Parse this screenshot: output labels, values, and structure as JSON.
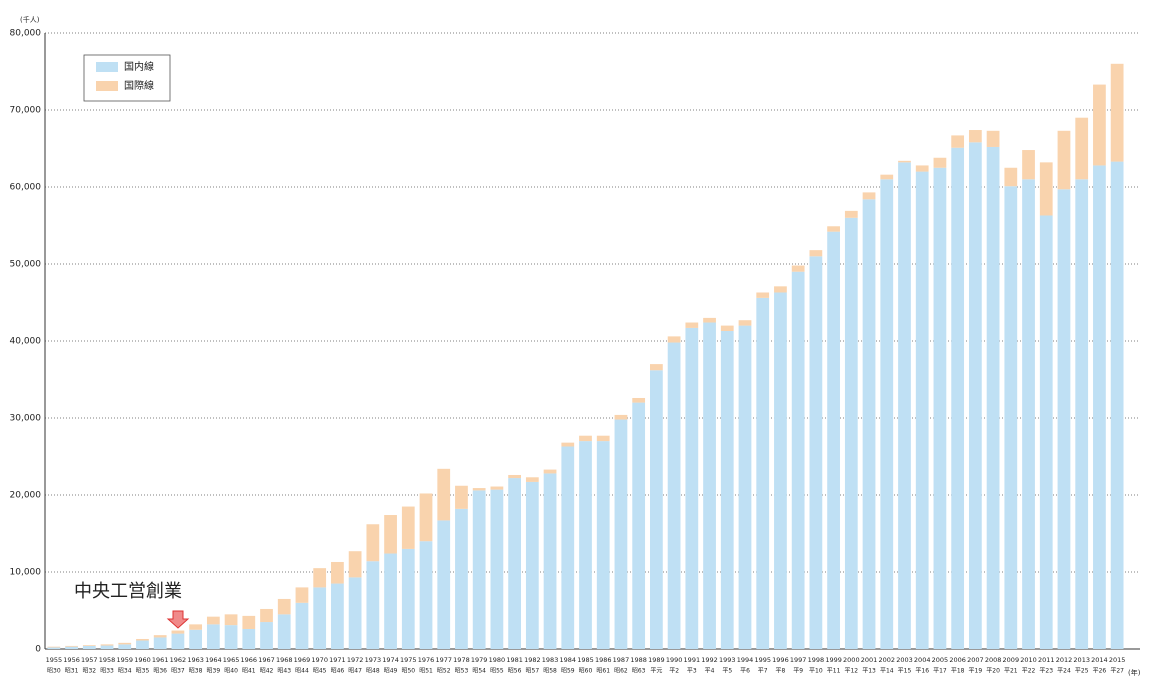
{
  "chart_data": {
    "type": "stacked_bar",
    "y_unit": "(千人)",
    "x_unit": "(年)",
    "annotation": "中央工営創業",
    "categories": [
      "1955",
      "1956",
      "1957",
      "1958",
      "1959",
      "1960",
      "1961",
      "1962",
      "1963",
      "1964",
      "1965",
      "1966",
      "1967",
      "1968",
      "1969",
      "1970",
      "1971",
      "1972",
      "1973",
      "1974",
      "1975",
      "1976",
      "1977",
      "1978",
      "1979",
      "1980",
      "1981",
      "1982",
      "1983",
      "1984",
      "1985",
      "1986",
      "1987",
      "1988",
      "1989",
      "1990",
      "1991",
      "1992",
      "1993",
      "1994",
      "1995",
      "1996",
      "1997",
      "1998",
      "1999",
      "2000",
      "2001",
      "2002",
      "2003",
      "2004",
      "2005",
      "2006",
      "2007",
      "2008",
      "2009",
      "2010",
      "2011",
      "2012",
      "2013",
      "2014",
      "2015"
    ],
    "era_labels": [
      "昭30",
      "昭31",
      "昭32",
      "昭33",
      "昭34",
      "昭35",
      "昭36",
      "昭37",
      "昭38",
      "昭39",
      "昭40",
      "昭41",
      "昭42",
      "昭43",
      "昭44",
      "昭45",
      "昭46",
      "昭47",
      "昭48",
      "昭49",
      "昭50",
      "昭51",
      "昭52",
      "昭53",
      "昭54",
      "昭55",
      "昭56",
      "昭57",
      "昭58",
      "昭59",
      "昭60",
      "昭61",
      "昭62",
      "昭63",
      "平元",
      "平2",
      "平3",
      "平4",
      "平5",
      "平6",
      "平7",
      "平8",
      "平9",
      "平10",
      "平11",
      "平12",
      "平13",
      "平14",
      "平15",
      "平16",
      "平17",
      "平18",
      "平19",
      "平20",
      "平21",
      "平22",
      "平23",
      "平24",
      "平25",
      "平26",
      "平27"
    ],
    "series": [
      {
        "name": "国内線",
        "color": "#bfe0f4",
        "values": [
          200,
          300,
          400,
          450,
          600,
          1100,
          1500,
          2000,
          2500,
          3200,
          3100,
          2600,
          3500,
          4500,
          6000,
          8000,
          8500,
          9300,
          11400,
          12400,
          13000,
          14000,
          16700,
          18200,
          20600,
          20700,
          22200,
          21700,
          22800,
          26300,
          27000,
          27000,
          29800,
          32000,
          36200,
          39800,
          41700,
          42400,
          41300,
          42000,
          45600,
          46300,
          49000,
          51000,
          54200,
          56000,
          58400,
          61000,
          63200,
          62000,
          62500,
          65100,
          65800,
          65200,
          60100,
          61000,
          56300,
          59700,
          61000,
          62800,
          63300
        ]
      },
      {
        "name": "国際線",
        "color": "#f9d3ad",
        "values": [
          100,
          100,
          100,
          150,
          200,
          200,
          300,
          400,
          700,
          1000,
          1400,
          1700,
          1700,
          2000,
          2000,
          2500,
          2800,
          3400,
          4800,
          5000,
          5500,
          6200,
          6700,
          3000,
          300,
          400,
          400,
          600,
          500,
          500,
          700,
          700,
          600,
          600,
          800,
          800,
          700,
          600,
          700,
          700,
          700,
          800,
          800,
          800,
          700,
          900,
          900,
          600,
          200,
          800,
          1300,
          1600,
          1600,
          2100,
          2400,
          3800,
          6900,
          7600,
          8000,
          10500,
          12700
        ]
      }
    ],
    "ylim": [
      0,
      80000
    ],
    "yticks": [
      0,
      {
        "value": 10000,
        "label": "10,000"
      },
      {
        "value": 20000,
        "label": "20,000"
      },
      {
        "value": 30000,
        "label": "30,000"
      },
      {
        "value": 40000,
        "label": "40,000"
      },
      {
        "value": 50000,
        "label": "50,000"
      },
      {
        "value": 60000,
        "label": "60,000"
      },
      {
        "value": 70000,
        "label": "70,000"
      },
      {
        "value": 80000,
        "label": "80,000"
      }
    ],
    "grid": true
  }
}
